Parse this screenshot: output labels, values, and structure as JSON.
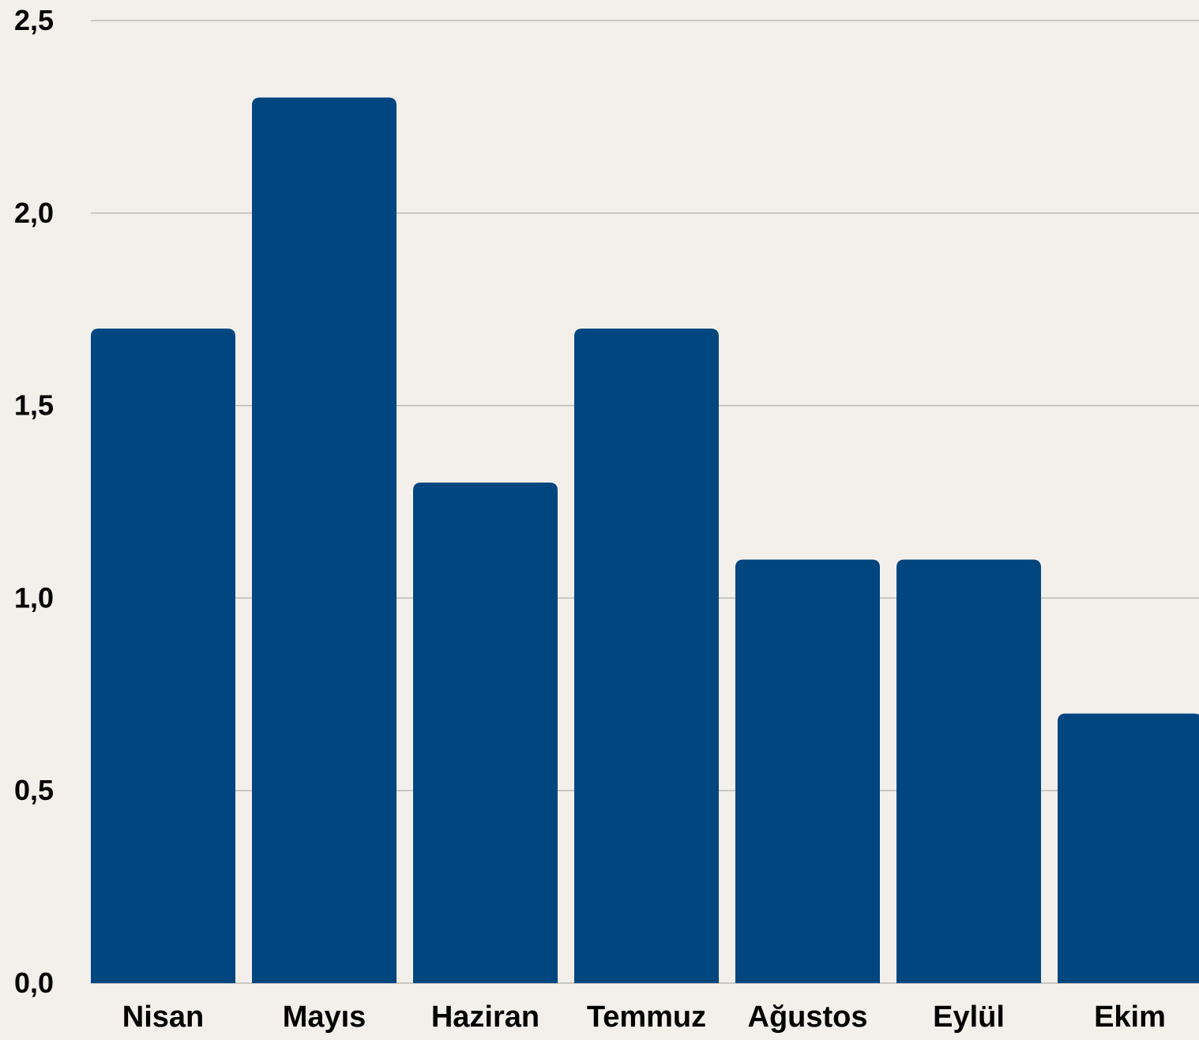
{
  "chart_data": {
    "type": "bar",
    "categories": [
      "Nisan",
      "Mayıs",
      "Haziran",
      "Temmuz",
      "Ağustos",
      "Eylül",
      "Ekim"
    ],
    "values": [
      1.7,
      2.3,
      1.3,
      1.7,
      1.1,
      1.1,
      0.7
    ],
    "y_ticks": [
      0.0,
      0.5,
      1.0,
      1.5,
      2.0,
      2.5
    ],
    "y_tick_labels": [
      "0,0",
      "0,5",
      "1,0",
      "1,5",
      "2,0",
      "2,5"
    ],
    "ylim": [
      0,
      2.5
    ],
    "title": "",
    "xlabel": "",
    "ylabel": "",
    "grid": true,
    "colors": {
      "bar": "#024680",
      "background": "#f3f0eb",
      "grid": "#bdbab5"
    }
  }
}
